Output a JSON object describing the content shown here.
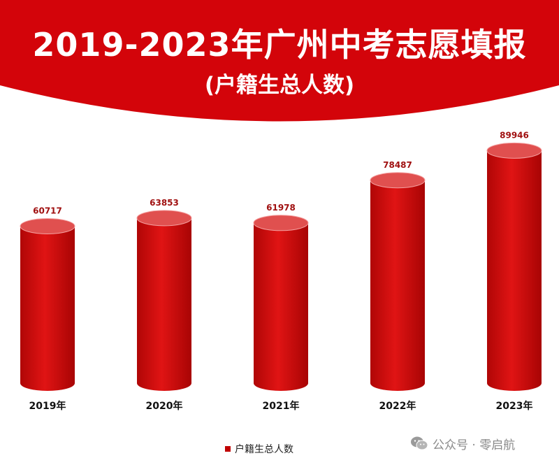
{
  "header": {
    "title": "2019-2023年广州中考志愿填报",
    "subtitle": "(户籍生总人数)"
  },
  "colors": {
    "banner": "#d3040a",
    "bar": "#cc0a0a",
    "bar_top": "#e0504f",
    "value_label": "#a01010",
    "legend": "#c00000"
  },
  "chart_data": {
    "type": "bar",
    "title": "2019-2023年广州中考志愿填报",
    "subtitle": "(户籍生总人数)",
    "categories": [
      "2019年",
      "2020年",
      "2021年",
      "2022年",
      "2023年"
    ],
    "series": [
      {
        "name": "户籍生总人数",
        "values": [
          60717,
          63853,
          61978,
          78487,
          89946
        ]
      }
    ],
    "xlabel": "",
    "ylabel": "",
    "ylim": [
      0,
      100000
    ],
    "grid": false,
    "legend": "bottom-center"
  },
  "legend": {
    "label": "户籍生总人数"
  },
  "watermark": {
    "text": "公众号 · 零启航"
  }
}
